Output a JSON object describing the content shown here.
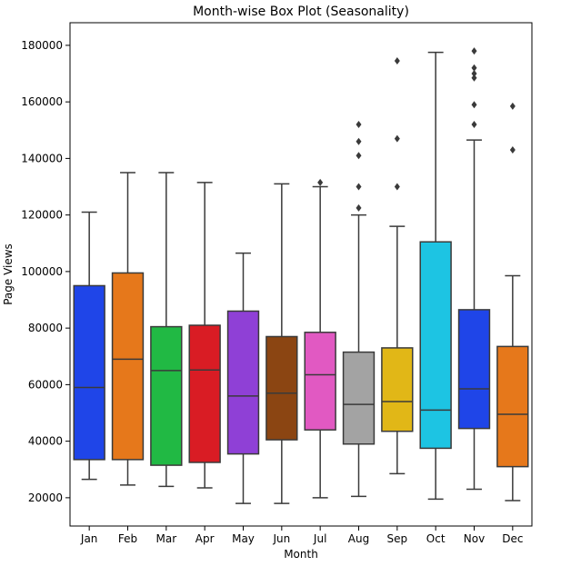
{
  "chart_data": {
    "type": "box",
    "title": "Month-wise Box Plot (Seasonality)",
    "xlabel": "Month",
    "ylabel": "Page Views",
    "ylim": [
      10000,
      188000
    ],
    "y_ticks": [
      20000,
      40000,
      60000,
      80000,
      100000,
      120000,
      140000,
      160000,
      180000
    ],
    "y_tick_labels": [
      "20000",
      "40000",
      "60000",
      "80000",
      "100000",
      "120000",
      "140000",
      "160000",
      "180000"
    ],
    "grid": false,
    "categories": [
      "Jan",
      "Feb",
      "Mar",
      "Apr",
      "May",
      "Jun",
      "Jul",
      "Aug",
      "Sep",
      "Oct",
      "Nov",
      "Dec"
    ],
    "boxes": [
      {
        "category": "Jan",
        "color": "#1f45e8",
        "whisker_low": 26500,
        "q1": 33500,
        "median": 59000,
        "q3": 95000,
        "whisker_high": 121000,
        "outliers": []
      },
      {
        "category": "Feb",
        "color": "#e6781b",
        "whisker_low": 24500,
        "q1": 33500,
        "median": 69000,
        "q3": 99500,
        "whisker_high": 135000,
        "outliers": []
      },
      {
        "category": "Mar",
        "color": "#21b944",
        "whisker_low": 24000,
        "q1": 31500,
        "median": 65000,
        "q3": 80500,
        "whisker_high": 135000,
        "outliers": []
      },
      {
        "category": "Apr",
        "color": "#d91c24",
        "whisker_low": 23500,
        "q1": 32500,
        "median": 65200,
        "q3": 81000,
        "whisker_high": 131500,
        "outliers": []
      },
      {
        "category": "May",
        "color": "#8f40d6",
        "whisker_low": 18000,
        "q1": 35500,
        "median": 56000,
        "q3": 86000,
        "whisker_high": 106500,
        "outliers": []
      },
      {
        "category": "Jun",
        "color": "#8b4512",
        "whisker_low": 18000,
        "q1": 40500,
        "median": 57000,
        "q3": 77000,
        "whisker_high": 131000,
        "outliers": []
      },
      {
        "category": "Jul",
        "color": "#e159c2",
        "whisker_low": 20000,
        "q1": 44000,
        "median": 63500,
        "q3": 78500,
        "whisker_high": 130000,
        "outliers": [
          131500
        ]
      },
      {
        "category": "Aug",
        "color": "#a3a3a3",
        "whisker_low": 20500,
        "q1": 39000,
        "median": 53000,
        "q3": 71500,
        "whisker_high": 120000,
        "outliers": [
          122500,
          130000,
          141000,
          146000,
          152000
        ]
      },
      {
        "category": "Sep",
        "color": "#e1b717",
        "whisker_low": 28500,
        "q1": 43500,
        "median": 54000,
        "q3": 73000,
        "whisker_high": 116000,
        "outliers": [
          130000,
          147000,
          174500
        ]
      },
      {
        "category": "Oct",
        "color": "#1dc4e3",
        "whisker_low": 19500,
        "q1": 37500,
        "median": 51000,
        "q3": 110500,
        "whisker_high": 177500,
        "outliers": []
      },
      {
        "category": "Nov",
        "color": "#1f45e8",
        "whisker_low": 23000,
        "q1": 44500,
        "median": 58500,
        "q3": 86500,
        "whisker_high": 146500,
        "outliers": [
          152000,
          159000,
          168500,
          170000,
          172000,
          178000
        ]
      },
      {
        "category": "Dec",
        "color": "#e6781b",
        "whisker_low": 19000,
        "q1": 31000,
        "median": 49500,
        "q3": 73500,
        "whisker_high": 98500,
        "outliers": [
          143000,
          158500
        ]
      }
    ]
  }
}
